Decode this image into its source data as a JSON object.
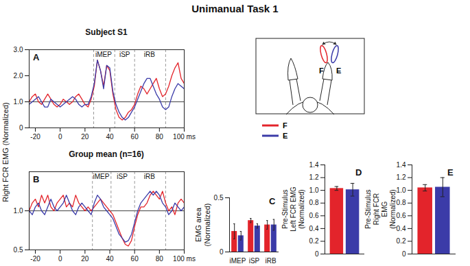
{
  "title": "Unimanual Task 1",
  "ylabel": "Right FCR EMG (Normalized)",
  "chart_data": [
    {
      "panel": "A",
      "type": "line",
      "title": "Subject S1",
      "x": [
        -25,
        -22.5,
        -20,
        -17.5,
        -15,
        -12.5,
        -10,
        -7.5,
        -5,
        -2.5,
        0,
        2.5,
        5,
        7.5,
        10,
        12.5,
        15,
        17.5,
        20,
        22.5,
        25,
        27.5,
        30,
        32.5,
        35,
        37.5,
        40,
        42.5,
        45,
        47.5,
        50,
        52.5,
        55,
        57.5,
        60,
        62.5,
        65,
        67.5,
        70,
        72.5,
        75,
        77.5,
        80,
        82.5,
        85,
        87.5,
        90,
        92.5,
        95,
        97.5,
        100
      ],
      "xlim": [
        -25,
        100
      ],
      "xticks": [
        -20,
        0,
        20,
        40,
        60,
        80,
        {
          "value": 100,
          "label": "100 ms"
        }
      ],
      "ylim": [
        0,
        3
      ],
      "yticks": [
        0,
        {
          "value": 1,
          "label": "1.0"
        },
        {
          "value": 2,
          "label": "2.0"
        },
        {
          "value": 3,
          "label": "3.0"
        }
      ],
      "reference_line": 1,
      "markers_x": [
        27,
        44,
        60,
        85
      ],
      "annotations": [
        {
          "text": "iMEP",
          "x": 35
        },
        {
          "text": "iSP",
          "x": 52
        },
        {
          "text": "iRB",
          "x": 72
        }
      ],
      "series": [
        {
          "name": "F",
          "color": "#e3242b",
          "values": [
            1.0,
            1.2,
            1.3,
            1.0,
            0.9,
            1.1,
            1.3,
            1.1,
            0.9,
            0.8,
            0.9,
            1.1,
            1.0,
            0.9,
            1.0,
            1.2,
            1.3,
            1.1,
            0.9,
            0.8,
            1.1,
            1.6,
            2.6,
            2.2,
            1.6,
            2.4,
            2.2,
            1.3,
            0.7,
            0.4,
            0.3,
            0.4,
            0.6,
            0.7,
            0.9,
            1.3,
            1.6,
            1.5,
            1.3,
            1.5,
            1.7,
            1.9,
            1.5,
            1.2,
            1.3,
            1.6,
            2.0,
            2.3,
            2.5,
            1.9,
            1.7
          ]
        },
        {
          "name": "E",
          "color": "#3b3ba8",
          "values": [
            0.9,
            1.0,
            1.1,
            1.2,
            1.0,
            0.8,
            0.8,
            1.1,
            1.0,
            0.9,
            0.8,
            0.9,
            1.0,
            1.1,
            1.2,
            1.1,
            0.9,
            0.8,
            0.9,
            0.9,
            1.2,
            1.7,
            2.6,
            2.2,
            1.5,
            2.4,
            2.3,
            1.4,
            0.9,
            0.6,
            0.4,
            0.3,
            0.4,
            0.6,
            0.8,
            1.1,
            1.4,
            1.7,
            1.9,
            1.9,
            1.6,
            1.3,
            1.1,
            0.8,
            0.7,
            0.8,
            1.2,
            1.5,
            1.7,
            1.6,
            1.5
          ]
        }
      ]
    },
    {
      "panel": "B",
      "type": "line",
      "title": "Group mean (n=16)",
      "x": [
        -25,
        -22.5,
        -20,
        -17.5,
        -15,
        -12.5,
        -10,
        -7.5,
        -5,
        -2.5,
        0,
        2.5,
        5,
        7.5,
        10,
        12.5,
        15,
        17.5,
        20,
        22.5,
        25,
        27.5,
        30,
        32.5,
        35,
        37.5,
        40,
        42.5,
        45,
        47.5,
        50,
        52.5,
        55,
        57.5,
        60,
        62.5,
        65,
        67.5,
        70,
        72.5,
        75,
        77.5,
        80,
        82.5,
        85,
        87.5,
        90,
        92.5,
        95,
        97.5,
        100
      ],
      "xlim": [
        -25,
        100
      ],
      "xticks": [
        -20,
        0,
        20,
        40,
        60,
        80,
        {
          "value": 100,
          "label": "100 ms"
        }
      ],
      "ylim": [
        0.5,
        1.5
      ],
      "yticks": [
        0.5,
        {
          "value": 1,
          "label": "1.0"
        }
      ],
      "reference_line": 1,
      "markers_x": [
        26,
        41,
        60,
        85
      ],
      "annotations": [
        {
          "text": "iMEP",
          "x": 33
        },
        {
          "text": "iSP",
          "x": 50
        },
        {
          "text": "iRB",
          "x": 72
        }
      ],
      "series": [
        {
          "name": "F",
          "color": "#e3242b",
          "values": [
            1.0,
            1.1,
            1.15,
            1.05,
            1.2,
            1.1,
            1.2,
            1.05,
            1.0,
            1.1,
            1.15,
            1.2,
            1.05,
            1.1,
            1.05,
            1.2,
            1.1,
            1.05,
            1.0,
            1.05,
            1.0,
            1.05,
            1.1,
            1.15,
            1.1,
            1.05,
            1.0,
            0.95,
            0.85,
            0.75,
            0.65,
            0.57,
            0.55,
            0.62,
            0.8,
            0.95,
            1.05,
            1.05,
            1.1,
            1.2,
            1.25,
            1.2,
            1.15,
            1.25,
            1.1,
            1.0,
            1.05,
            0.95,
            1.1,
            1.15,
            1.1
          ]
        },
        {
          "name": "E",
          "color": "#3b3ba8",
          "values": [
            1.0,
            0.95,
            1.05,
            1.1,
            1.0,
            0.95,
            1.05,
            1.15,
            1.05,
            1.0,
            1.05,
            1.1,
            1.2,
            1.1,
            1.0,
            0.95,
            1.05,
            1.1,
            1.05,
            1.0,
            0.95,
            1.1,
            1.2,
            1.15,
            1.05,
            1.0,
            0.95,
            0.9,
            0.8,
            0.7,
            0.65,
            0.6,
            0.62,
            0.7,
            0.85,
            1.0,
            1.1,
            1.15,
            1.2,
            1.25,
            1.2,
            1.25,
            1.2,
            1.1,
            1.05,
            0.95,
            1.0,
            1.1,
            1.05,
            1.0,
            1.05
          ]
        }
      ]
    },
    {
      "panel": "C",
      "type": "bar",
      "ylabel": "EMG area (Normalized)",
      "categories": [
        "iMEP",
        "iSP",
        "iRB"
      ],
      "ylim": [
        0,
        0.5
      ],
      "yticks": [
        0,
        0.5
      ],
      "series": [
        {
          "name": "F",
          "color": "#e3242b",
          "values": [
            0.19,
            0.29,
            0.25
          ],
          "errors": [
            0.07,
            0.02,
            0.04
          ]
        },
        {
          "name": "E",
          "color": "#3b3ba8",
          "values": [
            0.15,
            0.24,
            0.25
          ],
          "errors": [
            0.04,
            0.02,
            0.05
          ]
        }
      ]
    },
    {
      "panel": "D",
      "type": "bar",
      "ylabel": "Pre-Stimulus Left FCR EMG (Normalized)",
      "categories": [
        null
      ],
      "ylim": [
        0,
        1.4
      ],
      "yticks": [
        0,
        0.2,
        0.4,
        0.6,
        0.8,
        {
          "value": 1,
          "label": "1.0"
        },
        1.2,
        1.4
      ],
      "series": [
        {
          "name": "F",
          "color": "#e3242b",
          "values": [
            1.03
          ],
          "errors": [
            0.03
          ]
        },
        {
          "name": "E",
          "color": "#3b3ba8",
          "values": [
            1.01
          ],
          "errors": [
            0.1
          ]
        }
      ]
    },
    {
      "panel": "E",
      "type": "bar",
      "ylabel": "Pre-Stimulus Right FCR EMG (Normalized)",
      "categories": [
        null
      ],
      "ylim": [
        0,
        1.4
      ],
      "yticks": [
        0,
        0.2,
        0.4,
        0.6,
        0.8,
        {
          "value": 1,
          "label": "1.0"
        },
        1.2,
        1.4
      ],
      "series": [
        {
          "name": "F",
          "color": "#e3242b",
          "values": [
            1.04
          ],
          "errors": [
            0.05
          ]
        },
        {
          "name": "E",
          "color": "#3b3ba8",
          "values": [
            1.05
          ],
          "errors": [
            0.15
          ]
        }
      ]
    }
  ]
}
